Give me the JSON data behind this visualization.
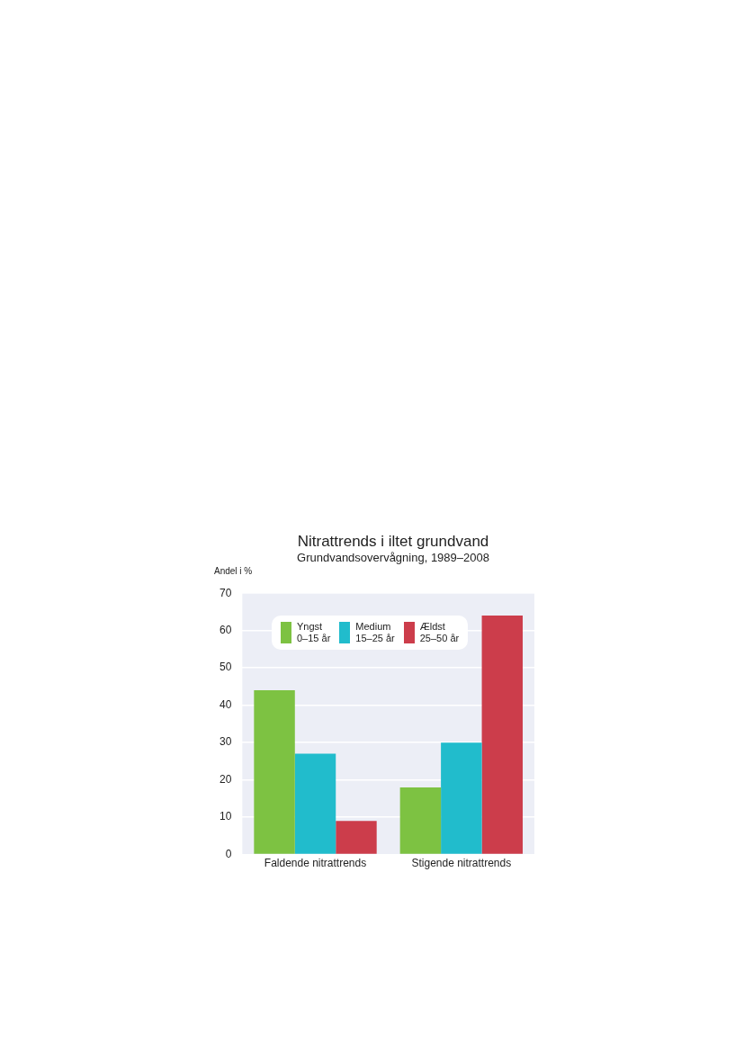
{
  "chart_data": {
    "type": "bar",
    "title": "Nitrattrends i iltet grundvand",
    "subtitle": "Grundvandsovervågning, 1989–2008",
    "ylabel": "Andel i %",
    "categories": [
      "Faldende nitrattrends",
      "Stigende nitrattrends"
    ],
    "series": [
      {
        "name": "Yngst\n0–15 år",
        "color": "#7dc242",
        "values": [
          44,
          18
        ]
      },
      {
        "name": "Medium\n15–25 år",
        "color": "#21bccc",
        "values": [
          27,
          30
        ]
      },
      {
        "name": "Ældst\n25–50 år",
        "color": "#cc3d4b",
        "values": [
          9,
          64
        ]
      }
    ],
    "ylim": [
      0,
      70
    ],
    "yticks": [
      0,
      10,
      20,
      30,
      40,
      50,
      60,
      70
    ],
    "grid": "y",
    "legend": "top left"
  }
}
